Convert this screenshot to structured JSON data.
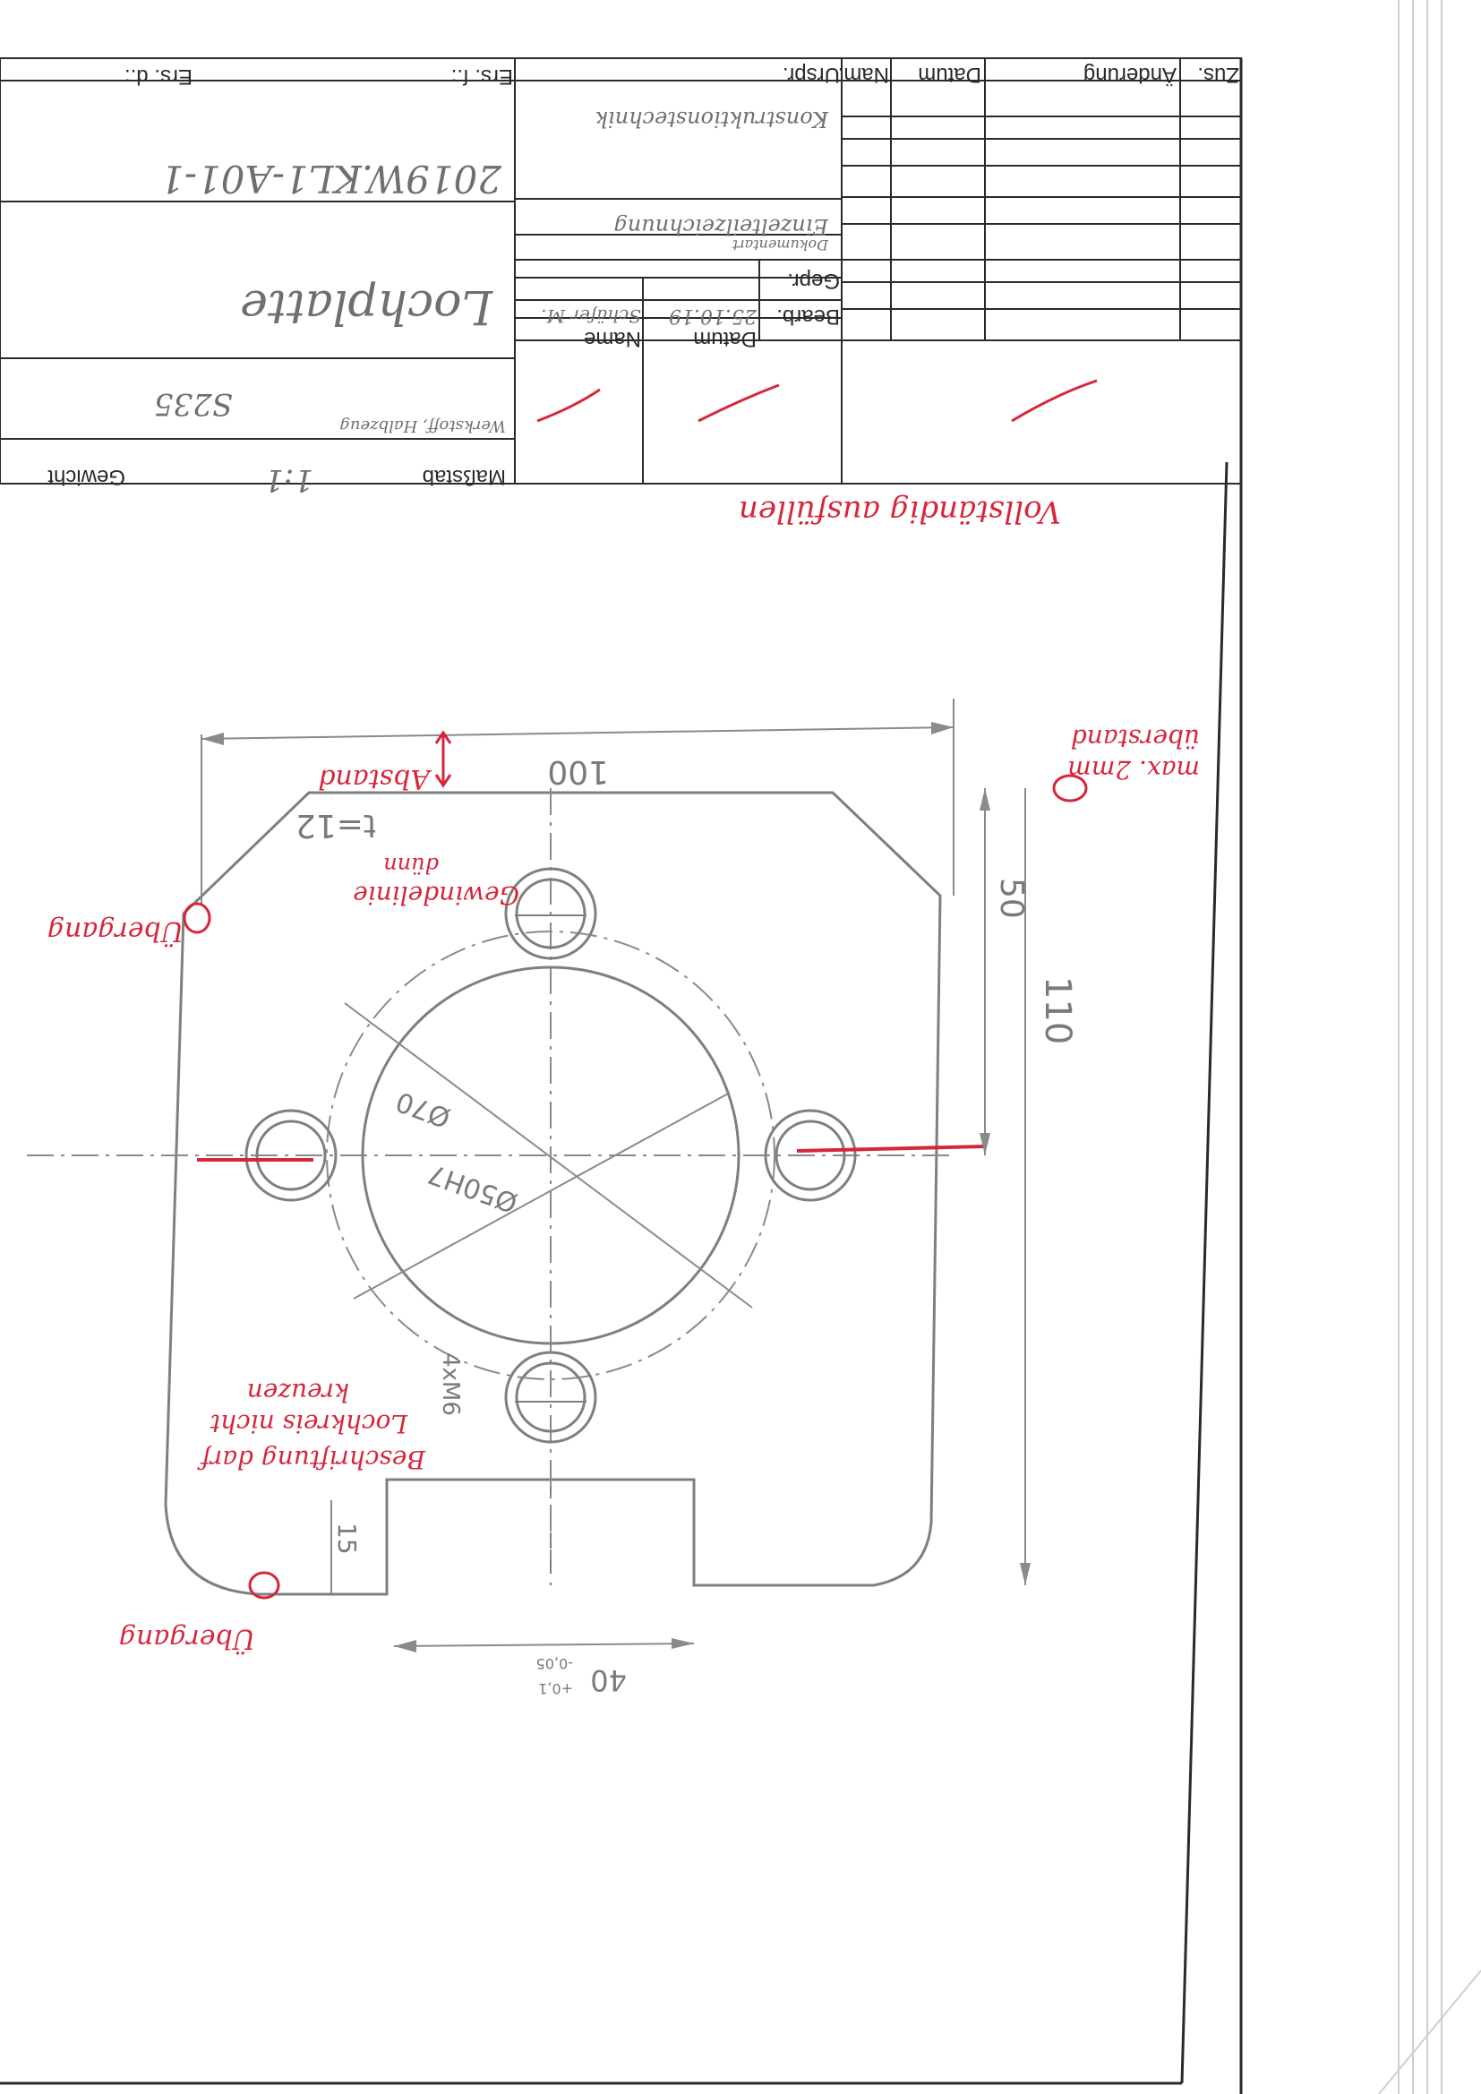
{
  "colors": {
    "pencil": "#8a8a8a",
    "frame": "#2a2a2a",
    "red_ink": "#d6263b"
  },
  "title_block": {
    "header": {
      "zus": "Zus.",
      "aenderung": "Änderung",
      "datum": "Datum",
      "nam": "Nam.",
      "ursprung": "Urspr."
    },
    "ers_f": "Ers. f.:",
    "ers_d": "Ers. d.:",
    "drawing_number": "2019W.KL1-A01-1",
    "title": "Lochplatte",
    "bearb_label": "Bearb.",
    "gepr_label": "Gepr.",
    "datum_label": "Datum",
    "name_label": "Name",
    "bearb_date": "25.10.19",
    "bearb_name": "Schäfer M.",
    "institution": "Konstruktionstechnik",
    "doc_type": "Einzelteilzeichnung",
    "doc_type_small": "Dokumentart",
    "werkstoff_label": "Werkstoff, Halbzeug",
    "werkstoff": "S235",
    "massstab_label": "Maßstab",
    "massstab": "1:1",
    "gewicht_label": "Gewicht"
  },
  "dimensions": {
    "width": "100",
    "height": "110",
    "offset_top": "50",
    "thickness": "t=12",
    "hole_circle": "Ø70",
    "bore": "Ø50H7",
    "threads": "4xM6",
    "slot_depth": "15",
    "slot_width": "40",
    "slot_tol_upper": "+0,1",
    "slot_tol_lower": "-0,05"
  },
  "corrections": {
    "fill_completely": "Vollständig ausfüllen",
    "max_overhang_1": "max. 2mm",
    "max_overhang_2": "überstand",
    "abstand": "Abstand",
    "gewinde_1": "Gewindelinie",
    "gewinde_2": "dünn",
    "uebergang_left": "Übergang",
    "uebergang_bottom": "Übergang",
    "beschriftung_1": "Beschriftung darf",
    "beschriftung_2": "Lochkreis nicht",
    "beschriftung_3": "kreuzen"
  }
}
